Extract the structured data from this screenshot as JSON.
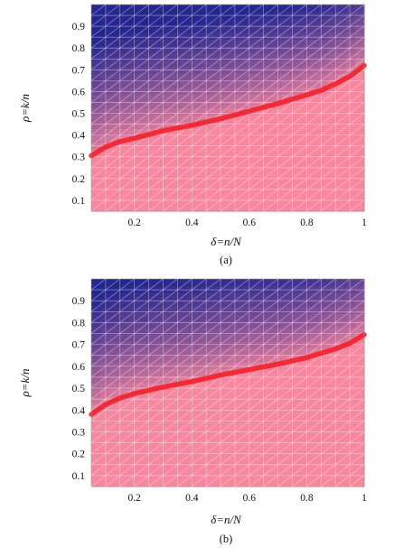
{
  "chart_data": [
    {
      "type": "heatmap",
      "caption": "(a)",
      "xlabel": "δ=n/N",
      "ylabel": "ρ=k/n",
      "xlim": [
        0.05,
        1.0
      ],
      "ylim": [
        0.05,
        1.0
      ],
      "xticks": [
        {
          "v": 0.2,
          "l": "0.2"
        },
        {
          "v": 0.4,
          "l": "0.4"
        },
        {
          "v": 0.6,
          "l": "0.6"
        },
        {
          "v": 0.8,
          "l": "0.8"
        },
        {
          "v": 1.0,
          "l": "1"
        }
      ],
      "yticks": [
        {
          "v": 0.1,
          "l": "0.1"
        },
        {
          "v": 0.2,
          "l": "0.2"
        },
        {
          "v": 0.3,
          "l": "0.3"
        },
        {
          "v": 0.4,
          "l": "0.4"
        },
        {
          "v": 0.5,
          "l": "0.5"
        },
        {
          "v": 0.6,
          "l": "0.6"
        },
        {
          "v": 0.7,
          "l": "0.7"
        },
        {
          "v": 0.8,
          "l": "0.8"
        },
        {
          "v": 0.9,
          "l": "0.9"
        }
      ],
      "grid": true,
      "colors": {
        "success": "#f7869e",
        "failure": "#25268f",
        "curve": "#f22a35"
      },
      "series": [
        {
          "x": [
            0.05,
            0.1,
            0.15,
            0.2,
            0.3,
            0.4,
            0.5,
            0.6,
            0.7,
            0.8,
            0.85,
            0.9,
            0.95,
            1.0
          ],
          "y": [
            0.305,
            0.345,
            0.37,
            0.385,
            0.42,
            0.445,
            0.475,
            0.51,
            0.545,
            0.585,
            0.605,
            0.635,
            0.67,
            0.72
          ]
        }
      ]
    },
    {
      "type": "heatmap",
      "caption": "(b)",
      "xlabel": "δ=n/N",
      "ylabel": "ρ=k/n",
      "xlim": [
        0.05,
        1.0
      ],
      "ylim": [
        0.05,
        1.0
      ],
      "xticks": [
        {
          "v": 0.2,
          "l": "0.2"
        },
        {
          "v": 0.4,
          "l": "0.4"
        },
        {
          "v": 0.6,
          "l": "0.6"
        },
        {
          "v": 0.8,
          "l": "0.8"
        },
        {
          "v": 1.0,
          "l": "1"
        }
      ],
      "yticks": [
        {
          "v": 0.1,
          "l": "0.1"
        },
        {
          "v": 0.2,
          "l": "0.2"
        },
        {
          "v": 0.3,
          "l": "0.3"
        },
        {
          "v": 0.4,
          "l": "0.4"
        },
        {
          "v": 0.5,
          "l": "0.5"
        },
        {
          "v": 0.6,
          "l": "0.6"
        },
        {
          "v": 0.7,
          "l": "0.7"
        },
        {
          "v": 0.8,
          "l": "0.8"
        },
        {
          "v": 0.9,
          "l": "0.9"
        }
      ],
      "grid": true,
      "colors": {
        "success": "#f7869e",
        "failure": "#25268f",
        "curve": "#f22a35"
      },
      "series": [
        {
          "x": [
            0.05,
            0.1,
            0.15,
            0.2,
            0.3,
            0.4,
            0.5,
            0.6,
            0.7,
            0.8,
            0.85,
            0.9,
            0.95,
            1.0
          ],
          "y": [
            0.38,
            0.425,
            0.455,
            0.475,
            0.505,
            0.53,
            0.56,
            0.585,
            0.61,
            0.64,
            0.66,
            0.68,
            0.705,
            0.745
          ]
        }
      ]
    }
  ]
}
